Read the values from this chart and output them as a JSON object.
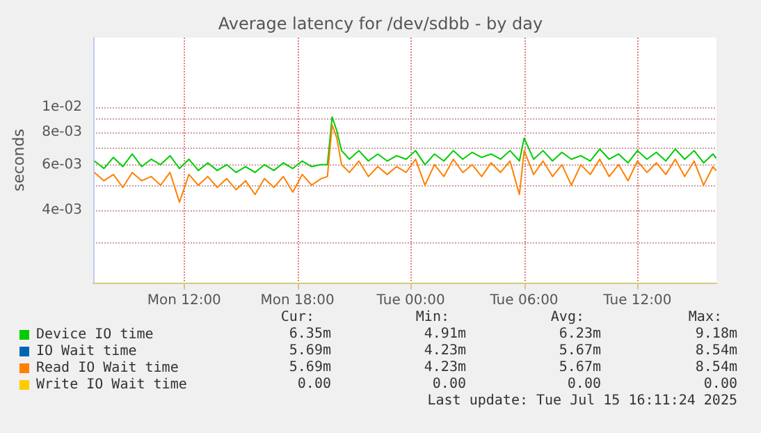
{
  "chart_data": {
    "type": "line",
    "title": "Average latency for /dev/sdbb - by day",
    "ylabel": "seconds",
    "log": "y",
    "grid": true,
    "legend": "bottom left",
    "marker": "none",
    "line_style": "solid",
    "xlim": [
      "2025-07-14T07:11",
      "2025-07-15T16:11"
    ],
    "xticks": [
      {
        "value": "2025-07-14T12:00",
        "label": "Mon 12:00"
      },
      {
        "value": "2025-07-14T18:00",
        "label": "Mon 18:00"
      },
      {
        "value": "2025-07-15T00:00",
        "label": "Tue 00:00"
      },
      {
        "value": "2025-07-15T06:00",
        "label": "Tue 06:00"
      },
      {
        "value": "2025-07-15T12:00",
        "label": "Tue 12:00"
      }
    ],
    "ylim": [
      0.0021,
      0.0186
    ],
    "yticks": [
      {
        "value": 0.003,
        "label": null
      },
      {
        "value": 0.004,
        "label": "4e-03"
      },
      {
        "value": 0.005,
        "label": null
      },
      {
        "value": 0.006,
        "label": "6e-03"
      },
      {
        "value": 0.007,
        "label": null
      },
      {
        "value": 0.008,
        "label": "8e-03"
      },
      {
        "value": 0.009,
        "label": null
      },
      {
        "value": 0.01,
        "label": "1e-02"
      }
    ],
    "x": [
      "2025-07-14T07:15",
      "2025-07-14T07:45",
      "2025-07-14T08:15",
      "2025-07-14T08:45",
      "2025-07-14T09:15",
      "2025-07-14T09:45",
      "2025-07-14T10:15",
      "2025-07-14T10:45",
      "2025-07-14T11:15",
      "2025-07-14T11:45",
      "2025-07-14T12:15",
      "2025-07-14T12:45",
      "2025-07-14T13:15",
      "2025-07-14T13:45",
      "2025-07-14T14:15",
      "2025-07-14T14:45",
      "2025-07-14T15:15",
      "2025-07-14T15:45",
      "2025-07-14T16:15",
      "2025-07-14T16:45",
      "2025-07-14T17:15",
      "2025-07-14T17:45",
      "2025-07-14T18:15",
      "2025-07-14T18:45",
      "2025-07-14T19:15",
      "2025-07-14T19:35",
      "2025-07-14T19:50",
      "2025-07-14T20:05",
      "2025-07-14T20:20",
      "2025-07-14T20:45",
      "2025-07-14T21:15",
      "2025-07-14T21:45",
      "2025-07-14T22:15",
      "2025-07-14T22:45",
      "2025-07-14T23:15",
      "2025-07-14T23:45",
      "2025-07-15T00:15",
      "2025-07-15T00:45",
      "2025-07-15T01:15",
      "2025-07-15T01:45",
      "2025-07-15T02:15",
      "2025-07-15T02:45",
      "2025-07-15T03:15",
      "2025-07-15T03:45",
      "2025-07-15T04:15",
      "2025-07-15T04:45",
      "2025-07-15T05:15",
      "2025-07-15T05:45",
      "2025-07-15T06:00",
      "2025-07-15T06:30",
      "2025-07-15T07:00",
      "2025-07-15T07:30",
      "2025-07-15T08:00",
      "2025-07-15T08:30",
      "2025-07-15T09:00",
      "2025-07-15T09:30",
      "2025-07-15T10:00",
      "2025-07-15T10:30",
      "2025-07-15T11:00",
      "2025-07-15T11:30",
      "2025-07-15T12:00",
      "2025-07-15T12:30",
      "2025-07-15T13:00",
      "2025-07-15T13:30",
      "2025-07-15T14:00",
      "2025-07-15T14:30",
      "2025-07-15T15:00",
      "2025-07-15T15:30",
      "2025-07-15T16:00",
      "2025-07-15T16:10"
    ],
    "series": [
      {
        "name": "Device IO time",
        "color": "#00cc00",
        "values": [
          0.0062,
          0.0058,
          0.0064,
          0.0059,
          0.0066,
          0.0059,
          0.0063,
          0.006,
          0.0065,
          0.0058,
          0.0063,
          0.0057,
          0.0061,
          0.0057,
          0.006,
          0.0056,
          0.0059,
          0.0056,
          0.006,
          0.0057,
          0.0061,
          0.0058,
          0.0062,
          0.0059,
          0.006,
          0.006,
          0.00918,
          0.0081,
          0.0068,
          0.0063,
          0.0068,
          0.0062,
          0.0066,
          0.0062,
          0.0065,
          0.0063,
          0.0068,
          0.006,
          0.0066,
          0.0062,
          0.0068,
          0.0063,
          0.0067,
          0.0064,
          0.0066,
          0.0063,
          0.0068,
          0.0062,
          0.0076,
          0.0063,
          0.0068,
          0.0062,
          0.0067,
          0.0063,
          0.0065,
          0.0062,
          0.0069,
          0.0063,
          0.0066,
          0.0061,
          0.0068,
          0.0063,
          0.0067,
          0.0062,
          0.0069,
          0.0063,
          0.0068,
          0.0061,
          0.0066,
          0.00635
        ]
      },
      {
        "name": "IO Wait time",
        "color": "#0066b3",
        "values": [
          null,
          null,
          null,
          null,
          null,
          null,
          null,
          null,
          null,
          null,
          null,
          null,
          null,
          null,
          null,
          null,
          null,
          null,
          null,
          null,
          null,
          null,
          null,
          null,
          null,
          null,
          null,
          null,
          null,
          null,
          null,
          null,
          null,
          null,
          null,
          null,
          null,
          null,
          null,
          null,
          null,
          null,
          null,
          null,
          null,
          null,
          null,
          null,
          null,
          null,
          null,
          null,
          null,
          null,
          null,
          null,
          null,
          null,
          null,
          null,
          null,
          null,
          null,
          null,
          null,
          null,
          null,
          null,
          null,
          null
        ]
      },
      {
        "name": "Read IO Wait time",
        "color": "#ff8000",
        "values": [
          0.0056,
          0.0052,
          0.0055,
          0.0049,
          0.0056,
          0.0052,
          0.0054,
          0.005,
          0.0056,
          0.0043,
          0.0055,
          0.005,
          0.0054,
          0.0049,
          0.0053,
          0.0048,
          0.0052,
          0.0046,
          0.0053,
          0.0049,
          0.0054,
          0.0047,
          0.0055,
          0.005,
          0.0053,
          0.0054,
          0.00854,
          0.0076,
          0.006,
          0.0056,
          0.0062,
          0.0054,
          0.0059,
          0.0055,
          0.0059,
          0.0056,
          0.0063,
          0.005,
          0.006,
          0.0054,
          0.0063,
          0.0056,
          0.006,
          0.0054,
          0.0061,
          0.0056,
          0.0062,
          0.0046,
          0.0068,
          0.0055,
          0.0062,
          0.0054,
          0.006,
          0.005,
          0.006,
          0.0055,
          0.0063,
          0.0054,
          0.006,
          0.0052,
          0.0062,
          0.0056,
          0.0061,
          0.0055,
          0.0063,
          0.0054,
          0.0062,
          0.005,
          0.0059,
          0.00569
        ]
      },
      {
        "name": "Write IO Wait time",
        "color": "#ffcc00",
        "values": [
          null,
          null,
          null,
          null,
          null,
          null,
          null,
          null,
          null,
          null,
          null,
          null,
          null,
          null,
          null,
          null,
          null,
          null,
          null,
          null,
          null,
          null,
          null,
          null,
          null,
          null,
          null,
          null,
          null,
          null,
          null,
          null,
          null,
          null,
          null,
          null,
          null,
          null,
          null,
          null,
          null,
          null,
          null,
          null,
          null,
          null,
          null,
          null,
          null,
          null,
          null,
          null,
          null,
          null,
          null,
          null,
          null,
          null,
          null,
          null,
          null,
          null,
          null,
          null,
          null,
          null,
          null,
          null,
          null,
          null
        ]
      }
    ],
    "annotations": [
      "Cur:",
      "Min:",
      "Avg:",
      "Max:",
      "6.35m",
      "4.91m",
      "6.23m",
      "9.18m",
      "5.69m",
      "4.23m",
      "5.67m",
      "8.54m",
      "5.69m",
      "4.23m",
      "5.67m",
      "8.54m",
      "0.00",
      "0.00",
      "0.00",
      "0.00",
      "Last update: Tue Jul 15 16:11:24 2025"
    ]
  }
}
